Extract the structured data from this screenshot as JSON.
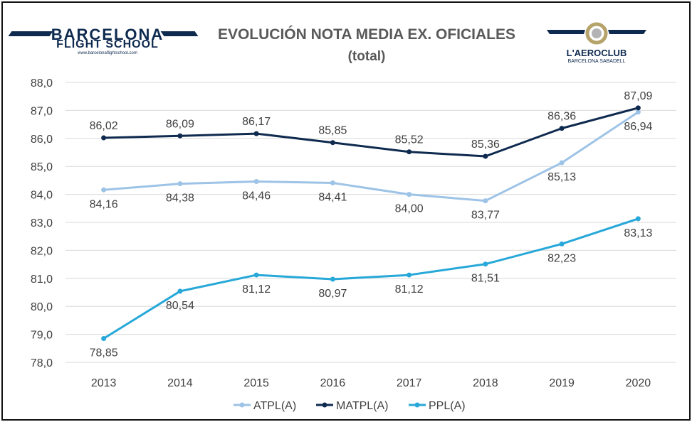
{
  "header": {
    "title": "EVOLUCIÓN NOTA MEDIA EX. OFICIALES",
    "subtitle": "(total)"
  },
  "logos": {
    "left": {
      "name": "BARCELONA",
      "subname": "FLIGHT SCHOOL",
      "url": "www.barcelonaflightschool.com"
    },
    "right": {
      "name": "L'AEROCLUB",
      "subname": "BARCELONA SABADELL"
    }
  },
  "colors": {
    "ATPL(A)": "#9dc3e6",
    "MATPL(A)": "#0f2a4f",
    "PPL(A)": "#27a8d8",
    "grid": "#d9d9d9",
    "text": "#404040"
  },
  "chart_data": {
    "type": "line",
    "title": "EVOLUCIÓN NOTA MEDIA EX. OFICIALES",
    "subtitle": "(total)",
    "x": [
      "2013",
      "2014",
      "2015",
      "2016",
      "2017",
      "2018",
      "2019",
      "2020"
    ],
    "ylim": [
      78.0,
      88.0
    ],
    "yticks": [
      "78,0",
      "79,0",
      "80,0",
      "81,0",
      "82,0",
      "83,0",
      "84,0",
      "85,0",
      "86,0",
      "87,0",
      "88,0"
    ],
    "grid": true,
    "legend": "bottom",
    "series": [
      {
        "name": "ATPL(A)",
        "values": [
          84.16,
          84.38,
          84.46,
          84.41,
          84.0,
          83.77,
          85.13,
          86.94
        ],
        "labels": [
          "84,16",
          "84,38",
          "84,46",
          "84,41",
          "84,00",
          "83,77",
          "85,13",
          "86,94"
        ],
        "label_position": "below"
      },
      {
        "name": "MATPL(A)",
        "values": [
          86.02,
          86.09,
          86.17,
          85.85,
          85.52,
          85.36,
          86.36,
          87.09
        ],
        "labels": [
          "86,02",
          "86,09",
          "86,17",
          "85,85",
          "85,52",
          "85,36",
          "86,36",
          "87,09"
        ],
        "label_position": "above"
      },
      {
        "name": "PPL(A)",
        "values": [
          78.85,
          80.54,
          81.12,
          80.97,
          81.12,
          81.51,
          82.23,
          83.13
        ],
        "labels": [
          "78,85",
          "80,54",
          "81,12",
          "80,97",
          "81,12",
          "81,51",
          "82,23",
          "83,13"
        ],
        "label_position": "below"
      }
    ]
  }
}
